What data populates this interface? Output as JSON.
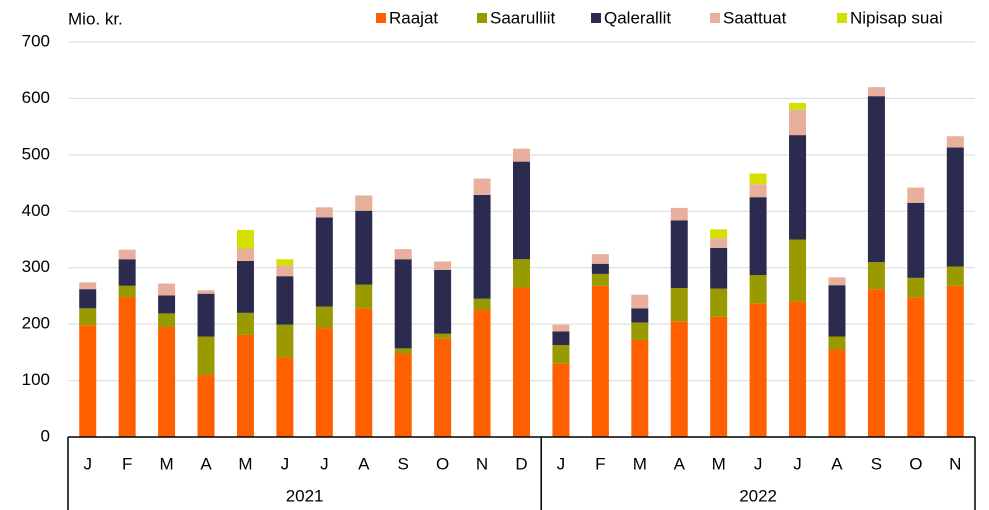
{
  "chart_data": {
    "type": "stacked_bar",
    "axis_label": "Mio. kr.",
    "groups": [
      {
        "label": "2021",
        "categories": [
          "J",
          "F",
          "M",
          "A",
          "M",
          "J",
          "J",
          "A",
          "S",
          "O",
          "N",
          "D"
        ]
      },
      {
        "label": "2022",
        "categories": [
          "J",
          "F",
          "M",
          "A",
          "M",
          "J",
          "J",
          "A",
          "S",
          "O",
          "N"
        ]
      }
    ],
    "series": [
      {
        "name": "Raajat",
        "color": "#fe5f00",
        "values": [
          198,
          248,
          195,
          110,
          181,
          141,
          193,
          228,
          148,
          175,
          225,
          265,
          130,
          268,
          172,
          205,
          213,
          237,
          240,
          155,
          262,
          247,
          268
        ]
      },
      {
        "name": "Saarulliit",
        "color": "#999900",
        "values": [
          30,
          20,
          24,
          68,
          39,
          58,
          38,
          42,
          9,
          8,
          20,
          50,
          33,
          21,
          31,
          59,
          50,
          50,
          110,
          23,
          48,
          35,
          34
        ]
      },
      {
        "name": "Qalerallit",
        "color": "#2b2b50",
        "values": [
          34,
          47,
          32,
          76,
          92,
          86,
          158,
          131,
          158,
          113,
          184,
          173,
          24,
          18,
          25,
          120,
          72,
          138,
          185,
          91,
          294,
          133,
          211
        ]
      },
      {
        "name": "Saattuat",
        "color": "#e8b09c",
        "values": [
          12,
          17,
          21,
          6,
          22,
          19,
          18,
          27,
          18,
          15,
          29,
          23,
          12,
          17,
          24,
          22,
          17,
          23,
          45,
          14,
          16,
          27,
          20
        ]
      },
      {
        "name": "Nipisap suai",
        "color": "#d4e000",
        "values": [
          0,
          0,
          0,
          0,
          33,
          11,
          0,
          0,
          0,
          0,
          0,
          0,
          0,
          0,
          0,
          0,
          16,
          19,
          12,
          0,
          0,
          0,
          0
        ]
      }
    ],
    "ylim": [
      0,
      700
    ],
    "yticks": [
      0,
      100,
      200,
      300,
      400,
      500,
      600,
      700
    ],
    "grid": true,
    "legend": "top-right"
  }
}
